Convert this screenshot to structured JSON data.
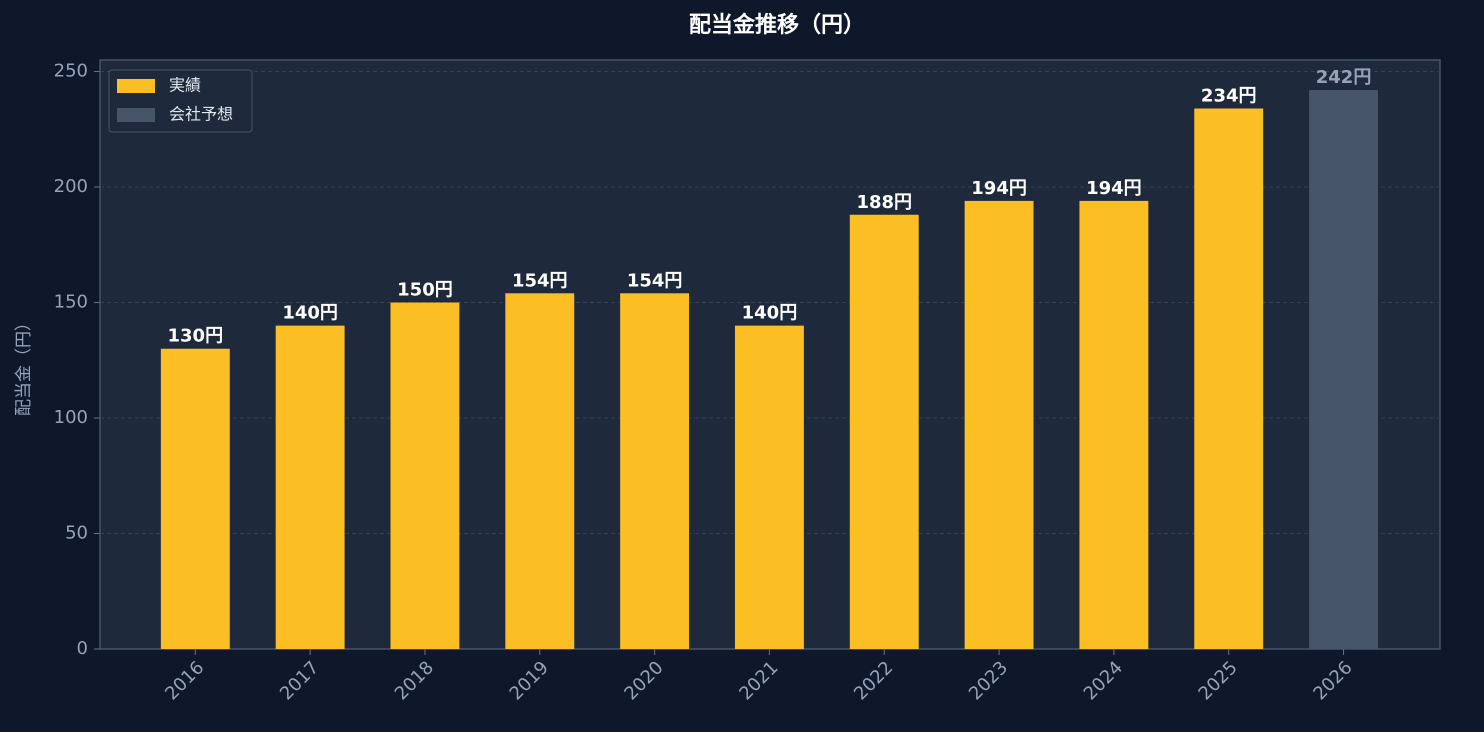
{
  "chart_data": {
    "type": "bar",
    "title": "配当金推移（円）",
    "y_label": "配当金（円）",
    "categories": [
      "2016",
      "2017",
      "2018",
      "2019",
      "2020",
      "2021",
      "2022",
      "2023",
      "2024",
      "2025",
      "2026"
    ],
    "series": [
      {
        "name": "実績",
        "color": "#fbbf24",
        "label_color": "#ffffff",
        "values": [
          130,
          140,
          150,
          154,
          154,
          140,
          188,
          194,
          194,
          234,
          null
        ],
        "value_labels": [
          "130円",
          "140円",
          "150円",
          "154円",
          "154円",
          "140円",
          "188円",
          "194円",
          "194円",
          "234円",
          null
        ]
      },
      {
        "name": "会社予想",
        "color": "#475569",
        "label_color": "#94a3b8",
        "values": [
          null,
          null,
          null,
          null,
          null,
          null,
          null,
          null,
          null,
          null,
          242
        ],
        "value_labels": [
          null,
          null,
          null,
          null,
          null,
          null,
          null,
          null,
          null,
          null,
          "242円"
        ]
      }
    ],
    "ylim": [
      0,
      255
    ],
    "yticks": [
      0,
      50,
      100,
      150,
      200,
      250
    ],
    "grid": true,
    "legend": "upper-left"
  }
}
